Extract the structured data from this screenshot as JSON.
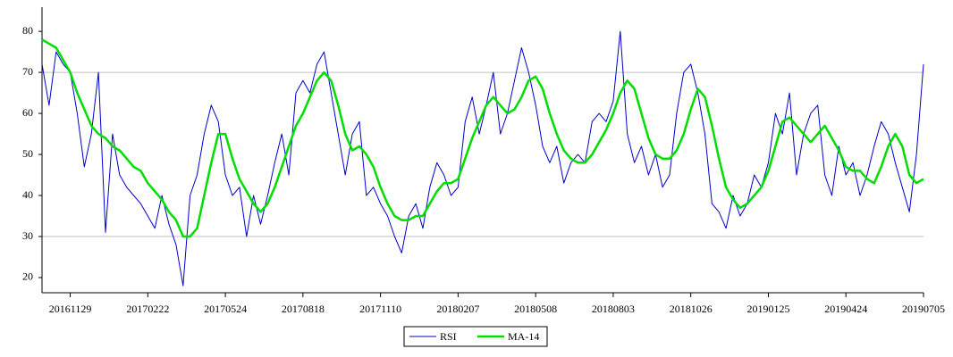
{
  "chart_data": {
    "type": "line",
    "categories": [
      null,
      null,
      null,
      null,
      "20161129",
      null,
      null,
      null,
      null,
      null,
      null,
      null,
      null,
      null,
      null,
      "20170222",
      null,
      null,
      null,
      null,
      null,
      null,
      null,
      null,
      null,
      null,
      "20170524",
      null,
      null,
      null,
      null,
      null,
      null,
      null,
      null,
      null,
      null,
      "20170818",
      null,
      null,
      null,
      null,
      null,
      null,
      null,
      null,
      null,
      null,
      "20171110",
      null,
      null,
      null,
      null,
      null,
      null,
      null,
      null,
      null,
      null,
      "20180207",
      null,
      null,
      null,
      null,
      null,
      null,
      null,
      null,
      null,
      null,
      "20180508",
      null,
      null,
      null,
      null,
      null,
      null,
      null,
      null,
      null,
      null,
      "20180803",
      null,
      null,
      null,
      null,
      null,
      null,
      null,
      null,
      null,
      null,
      "20181026",
      null,
      null,
      null,
      null,
      null,
      null,
      null,
      null,
      null,
      null,
      "20190125",
      null,
      null,
      null,
      null,
      null,
      null,
      null,
      null,
      null,
      null,
      "20190424",
      null,
      null,
      null,
      null,
      null,
      null,
      null,
      null,
      null,
      null,
      "20190705"
    ],
    "series": [
      {
        "name": "RSI",
        "color": "#0000cc",
        "width": 1,
        "values": [
          72,
          62,
          75,
          72,
          70,
          60,
          47,
          55,
          70,
          31,
          55,
          45,
          42,
          40,
          38,
          35,
          32,
          40,
          33,
          28,
          18,
          40,
          45,
          55,
          62,
          58,
          45,
          40,
          42,
          30,
          40,
          33,
          40,
          48,
          55,
          45,
          65,
          68,
          65,
          72,
          75,
          65,
          55,
          45,
          55,
          58,
          40,
          42,
          38,
          35,
          30,
          26,
          35,
          38,
          32,
          42,
          48,
          45,
          40,
          42,
          58,
          64,
          55,
          62,
          70,
          55,
          60,
          68,
          76,
          70,
          62,
          52,
          48,
          52,
          43,
          48,
          50,
          48,
          58,
          60,
          58,
          63,
          80,
          55,
          48,
          52,
          45,
          50,
          42,
          45,
          60,
          70,
          72,
          65,
          55,
          38,
          36,
          32,
          40,
          35,
          38,
          45,
          42,
          48,
          60,
          55,
          65,
          45,
          55,
          60,
          62,
          45,
          40,
          52,
          45,
          48,
          40,
          45,
          52,
          58,
          55,
          48,
          42,
          36,
          50,
          72
        ]
      },
      {
        "name": "MA-14",
        "color": "#00dd00",
        "width": 2.5,
        "values": [
          78,
          77,
          76,
          73,
          70,
          65,
          61,
          57,
          55,
          54,
          52,
          51,
          49,
          47,
          46,
          43,
          41,
          39,
          36,
          34,
          30,
          30,
          32,
          40,
          48,
          55,
          55,
          49,
          44,
          41,
          38,
          36,
          38,
          42,
          47,
          52,
          57,
          60,
          64,
          68,
          70,
          68,
          62,
          55,
          51,
          52,
          50,
          47,
          42,
          38,
          35,
          34,
          34,
          35,
          35,
          38,
          41,
          43,
          43,
          44,
          49,
          54,
          58,
          62,
          64,
          62,
          60,
          61,
          64,
          68,
          69,
          66,
          60,
          55,
          51,
          49,
          48,
          48,
          50,
          53,
          56,
          60,
          65,
          68,
          66,
          60,
          54,
          50,
          49,
          49,
          51,
          55,
          61,
          66,
          64,
          57,
          49,
          42,
          39,
          37,
          38,
          40,
          42,
          46,
          52,
          58,
          59,
          57,
          55,
          53,
          55,
          57,
          54,
          51,
          47,
          46,
          46,
          44,
          43,
          47,
          52,
          55,
          52,
          45,
          43,
          44
        ]
      }
    ],
    "ylim": [
      16.3,
      85.9
    ],
    "yticks": [
      20,
      30,
      40,
      50,
      60,
      70,
      80
    ],
    "reference_lines": [
      30,
      70
    ],
    "legend": "bottom"
  }
}
